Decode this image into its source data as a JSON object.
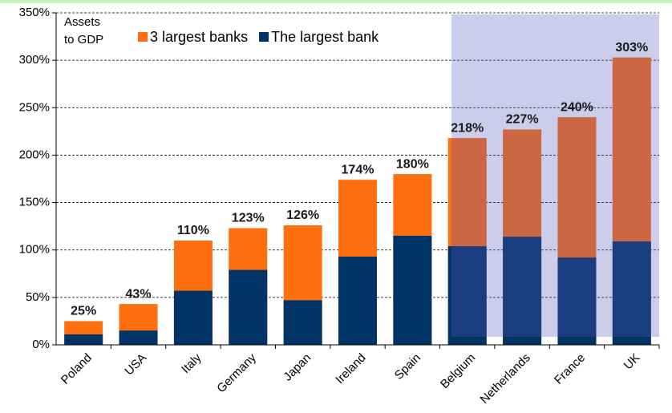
{
  "chart_data": {
    "type": "overlap_bar",
    "annotation_lines": [
      "Assets",
      "to GDP"
    ],
    "categories": [
      "Poland",
      "USA",
      "Italy",
      "Germany",
      "Japan",
      "Ireland",
      "Spain",
      "Belgium",
      "Netherlands",
      "France",
      "UK"
    ],
    "series": [
      {
        "name": "3 largest banks",
        "color": "#fd6f0f",
        "values": [
          25,
          43,
          110,
          123,
          126,
          174,
          180,
          218,
          227,
          240,
          303
        ],
        "value_labels": [
          "25%",
          "43%",
          "110%",
          "123%",
          "126%",
          "174%",
          "180%",
          "218%",
          "227%",
          "240%",
          "303%"
        ]
      },
      {
        "name": "The largest bank",
        "color": "#003366",
        "values": [
          11,
          15,
          57,
          79,
          47,
          93,
          115,
          104,
          114,
          92,
          109
        ]
      }
    ],
    "ylim": [
      0,
      350
    ],
    "yticks": [
      {
        "value": 0,
        "label": "0%"
      },
      {
        "value": 50,
        "label": "50%"
      },
      {
        "value": 100,
        "label": "100%"
      },
      {
        "value": 150,
        "label": "150%"
      },
      {
        "value": 200,
        "label": "200%"
      },
      {
        "value": 250,
        "label": "250%"
      },
      {
        "value": 300,
        "label": "300%"
      },
      {
        "value": 350,
        "label": "350%"
      }
    ],
    "grid": true
  }
}
